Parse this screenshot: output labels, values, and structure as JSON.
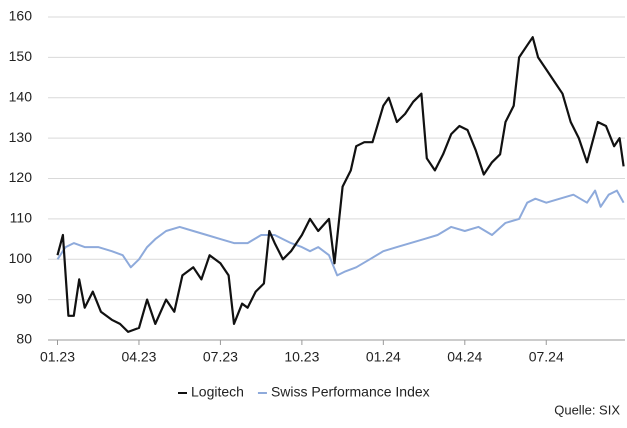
{
  "chart_data": {
    "type": "line",
    "series": [
      {
        "name": "Logitech",
        "color": "#111111",
        "x": [
          0,
          0.2,
          0.4,
          0.6,
          0.8,
          1.0,
          1.3,
          1.6,
          2.0,
          2.3,
          2.6,
          3.0,
          3.3,
          3.6,
          4.0,
          4.3,
          4.6,
          5.0,
          5.3,
          5.6,
          6.0,
          6.3,
          6.5,
          6.8,
          7.0,
          7.3,
          7.6,
          7.8,
          8.0,
          8.3,
          8.6,
          9.0,
          9.3,
          9.6,
          10.0,
          10.2,
          10.5,
          10.8,
          11.0,
          11.3,
          11.6,
          12.0,
          12.2,
          12.5,
          12.8,
          13.1,
          13.4,
          13.6,
          13.9,
          14.2,
          14.5,
          14.8,
          15.1,
          15.4,
          15.7,
          16.0,
          16.3,
          16.5,
          16.8,
          17.0,
          17.3,
          17.5,
          17.7,
          18.0,
          18.3,
          18.6,
          18.9,
          19.2,
          19.5,
          19.7,
          19.9,
          20.2,
          20.5,
          20.7,
          20.85
        ],
        "values": [
          101,
          106,
          86,
          86,
          95,
          88,
          92,
          87,
          85,
          84,
          82,
          83,
          90,
          84,
          90,
          87,
          96,
          98,
          95,
          101,
          99,
          96,
          84,
          89,
          88,
          92,
          94,
          107,
          104,
          100,
          102,
          106,
          110,
          107,
          110,
          99,
          118,
          122,
          128,
          129,
          129,
          138,
          140,
          134,
          136,
          139,
          141,
          125,
          122,
          126,
          131,
          133,
          132,
          127,
          121,
          124,
          126,
          134,
          138,
          150,
          153,
          155,
          150,
          147,
          144,
          141,
          134,
          130,
          124,
          129,
          134,
          133,
          128,
          130,
          123
        ]
      },
      {
        "name": "Swiss Performance Index",
        "color": "#8eaadb",
        "x": [
          0,
          0.3,
          0.6,
          1,
          1.5,
          2,
          2.4,
          2.7,
          3,
          3.3,
          3.6,
          4,
          4.5,
          5,
          5.5,
          6,
          6.5,
          7,
          7.5,
          8,
          8.3,
          8.6,
          9,
          9.3,
          9.6,
          10,
          10.3,
          10.6,
          11,
          11.5,
          12,
          12.5,
          13,
          13.5,
          14,
          14.5,
          15,
          15.5,
          16,
          16.5,
          17,
          17.3,
          17.6,
          18,
          18.5,
          19,
          19.5,
          19.8,
          20,
          20.3,
          20.6,
          20.85
        ],
        "values": [
          100,
          103,
          104,
          103,
          103,
          102,
          101,
          98,
          100,
          103,
          105,
          107,
          108,
          107,
          106,
          105,
          104,
          104,
          106,
          106,
          105,
          104,
          103,
          102,
          103,
          101,
          96,
          97,
          98,
          100,
          102,
          103,
          104,
          105,
          106,
          108,
          107,
          108,
          106,
          109,
          110,
          114,
          115,
          114,
          115,
          116,
          114,
          117,
          113,
          116,
          117,
          114
        ]
      }
    ],
    "xlim": [
      -0.35,
      20.9
    ],
    "xticks": [
      {
        "value": 0,
        "label": "01.23"
      },
      {
        "value": 3,
        "label": "04.23"
      },
      {
        "value": 6,
        "label": "07.23"
      },
      {
        "value": 9,
        "label": "10.23"
      },
      {
        "value": 12,
        "label": "01.24"
      },
      {
        "value": 15,
        "label": "04.24"
      },
      {
        "value": 18,
        "label": "07.24"
      }
    ],
    "ylim": [
      80,
      160
    ],
    "yticks": [
      80,
      90,
      100,
      110,
      120,
      130,
      140,
      150,
      160
    ],
    "grid": true,
    "source": "Quelle: SIX"
  }
}
